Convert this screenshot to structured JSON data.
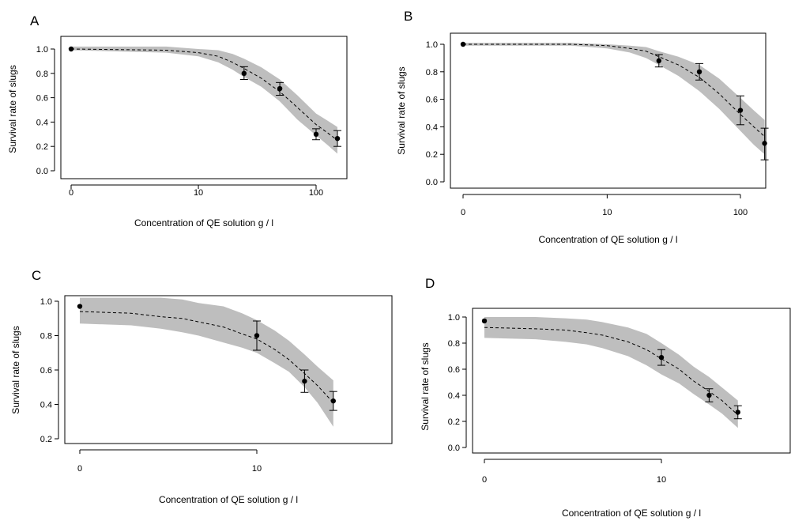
{
  "chart_data": [
    {
      "type": "scatter",
      "panel_label": "A",
      "xlabel": "Concentration of QE solution g / l",
      "ylabel": "Survival rate of slugs",
      "x_scale": "log1p",
      "x_ticks": [
        0,
        10,
        100
      ],
      "x_tick_labels": [
        "0",
        "10",
        "100"
      ],
      "xlim": [
        0,
        160
      ],
      "ylim": [
        0,
        1.02
      ],
      "y_ticks": [
        0,
        0.2,
        0.4,
        0.6,
        0.8,
        1.0
      ],
      "y_tick_labels": [
        "0.0",
        "0.2",
        "0.4",
        "0.6",
        "0.8",
        "1.0"
      ],
      "points": [
        {
          "x": 0,
          "y": 1.0,
          "err_low": null,
          "err_high": null
        },
        {
          "x": 25,
          "y": 0.8,
          "err_low": 0.75,
          "err_high": 0.855
        },
        {
          "x": 50,
          "y": 0.675,
          "err_low": 0.62,
          "err_high": 0.725
        },
        {
          "x": 100,
          "y": 0.3,
          "err_low": 0.255,
          "err_high": 0.345
        },
        {
          "x": 150,
          "y": 0.265,
          "err_low": 0.2,
          "err_high": 0.33
        }
      ],
      "fit": {
        "x": [
          0,
          5,
          10,
          15,
          20,
          25,
          35,
          50,
          70,
          100,
          125,
          150
        ],
        "y": [
          1.0,
          0.99,
          0.97,
          0.94,
          0.89,
          0.84,
          0.76,
          0.65,
          0.52,
          0.38,
          0.31,
          0.25
        ],
        "lower": [
          0.99,
          0.97,
          0.94,
          0.89,
          0.83,
          0.77,
          0.69,
          0.57,
          0.42,
          0.29,
          0.21,
          0.14
        ],
        "upper": [
          1.02,
          1.02,
          1.0,
          0.99,
          0.96,
          0.92,
          0.85,
          0.75,
          0.62,
          0.47,
          0.41,
          0.36
        ]
      }
    },
    {
      "type": "scatter",
      "panel_label": "B",
      "xlabel": "Concentration of QE solution g / l",
      "ylabel": "Survival rate of slugs",
      "x_scale": "log1p",
      "x_ticks": [
        0,
        10,
        100
      ],
      "x_tick_labels": [
        "0",
        "10",
        "100"
      ],
      "xlim": [
        0,
        160
      ],
      "ylim": [
        0,
        1.03
      ],
      "y_ticks": [
        0,
        0.2,
        0.4,
        0.6,
        0.8,
        1.0
      ],
      "y_tick_labels": [
        "0.0",
        "0.2",
        "0.4",
        "0.6",
        "0.8",
        "1.0"
      ],
      "points": [
        {
          "x": 0,
          "y": 1.0,
          "err_low": null,
          "err_high": null
        },
        {
          "x": 25,
          "y": 0.88,
          "err_low": 0.835,
          "err_high": 0.925
        },
        {
          "x": 50,
          "y": 0.8,
          "err_low": 0.74,
          "err_high": 0.86
        },
        {
          "x": 100,
          "y": 0.52,
          "err_low": 0.415,
          "err_high": 0.625
        },
        {
          "x": 150,
          "y": 0.28,
          "err_low": 0.16,
          "err_high": 0.39
        }
      ],
      "fit": {
        "x": [
          0,
          5,
          10,
          15,
          20,
          25,
          35,
          50,
          70,
          100,
          125,
          150
        ],
        "y": [
          1.0,
          1.0,
          0.99,
          0.97,
          0.95,
          0.91,
          0.85,
          0.76,
          0.64,
          0.49,
          0.4,
          0.33
        ],
        "lower": [
          0.99,
          0.99,
          0.97,
          0.94,
          0.9,
          0.85,
          0.77,
          0.66,
          0.53,
          0.37,
          0.27,
          0.2
        ],
        "upper": [
          1.01,
          1.01,
          1.0,
          0.99,
          0.98,
          0.95,
          0.91,
          0.85,
          0.75,
          0.61,
          0.52,
          0.45
        ]
      }
    },
    {
      "type": "scatter",
      "panel_label": "C",
      "xlabel": "Concentration of QE solution g / l",
      "ylabel": "Survival rate of slugs",
      "x_scale": "log1p",
      "x_ticks": [
        0,
        10
      ],
      "x_tick_labels": [
        "0",
        "10"
      ],
      "xlim": [
        0,
        30
      ],
      "ylim": [
        0.2,
        1.03
      ],
      "y_ticks": [
        0.2,
        0.4,
        0.6,
        0.8,
        1.0
      ],
      "y_tick_labels": [
        "0.2",
        "0.4",
        "0.6",
        "0.8",
        "1.0"
      ],
      "points": [
        {
          "x": 0,
          "y": 0.97,
          "err_low": null,
          "err_high": null
        },
        {
          "x": 10,
          "y": 0.8,
          "err_low": 0.715,
          "err_high": 0.885
        },
        {
          "x": 20,
          "y": 0.535,
          "err_low": 0.47,
          "err_high": 0.6
        },
        {
          "x": 30,
          "y": 0.42,
          "err_low": 0.365,
          "err_high": 0.475
        }
      ],
      "fit": {
        "x": [
          0,
          1,
          2,
          3,
          4,
          6,
          8,
          10,
          13,
          16,
          20,
          24,
          30
        ],
        "y": [
          0.94,
          0.93,
          0.91,
          0.9,
          0.88,
          0.85,
          0.81,
          0.78,
          0.72,
          0.66,
          0.58,
          0.51,
          0.41
        ],
        "lower": [
          0.87,
          0.86,
          0.84,
          0.82,
          0.8,
          0.76,
          0.73,
          0.7,
          0.64,
          0.59,
          0.5,
          0.41,
          0.27
        ],
        "upper": [
          1.02,
          1.02,
          1.02,
          1.01,
          0.99,
          0.97,
          0.93,
          0.89,
          0.83,
          0.77,
          0.69,
          0.62,
          0.54
        ]
      }
    },
    {
      "type": "scatter",
      "panel_label": "D",
      "xlabel": "Concentration of QE solution g / l",
      "ylabel": "Survival rate of slugs",
      "x_scale": "log1p",
      "x_ticks": [
        0,
        10
      ],
      "x_tick_labels": [
        "0",
        "10"
      ],
      "xlim": [
        0,
        30
      ],
      "ylim": [
        0,
        1.04
      ],
      "y_ticks": [
        0,
        0.2,
        0.4,
        0.6,
        0.8,
        1.0
      ],
      "y_tick_labels": [
        "0.0",
        "0.2",
        "0.4",
        "0.6",
        "0.8",
        "1.0"
      ],
      "points": [
        {
          "x": 0,
          "y": 0.97,
          "err_low": null,
          "err_high": null
        },
        {
          "x": 10,
          "y": 0.69,
          "err_low": 0.63,
          "err_high": 0.75
        },
        {
          "x": 20,
          "y": 0.4,
          "err_low": 0.35,
          "err_high": 0.45
        },
        {
          "x": 30,
          "y": 0.27,
          "err_low": 0.22,
          "err_high": 0.32
        }
      ],
      "fit": {
        "x": [
          0,
          1,
          2,
          3,
          4,
          6,
          8,
          10,
          13,
          16,
          20,
          24,
          30
        ],
        "y": [
          0.92,
          0.91,
          0.9,
          0.88,
          0.86,
          0.81,
          0.75,
          0.68,
          0.6,
          0.51,
          0.43,
          0.36,
          0.25
        ],
        "lower": [
          0.84,
          0.83,
          0.81,
          0.79,
          0.76,
          0.7,
          0.63,
          0.56,
          0.49,
          0.41,
          0.33,
          0.26,
          0.15
        ],
        "upper": [
          1.0,
          1.0,
          0.99,
          0.98,
          0.96,
          0.92,
          0.87,
          0.8,
          0.71,
          0.62,
          0.54,
          0.46,
          0.36
        ]
      }
    }
  ]
}
